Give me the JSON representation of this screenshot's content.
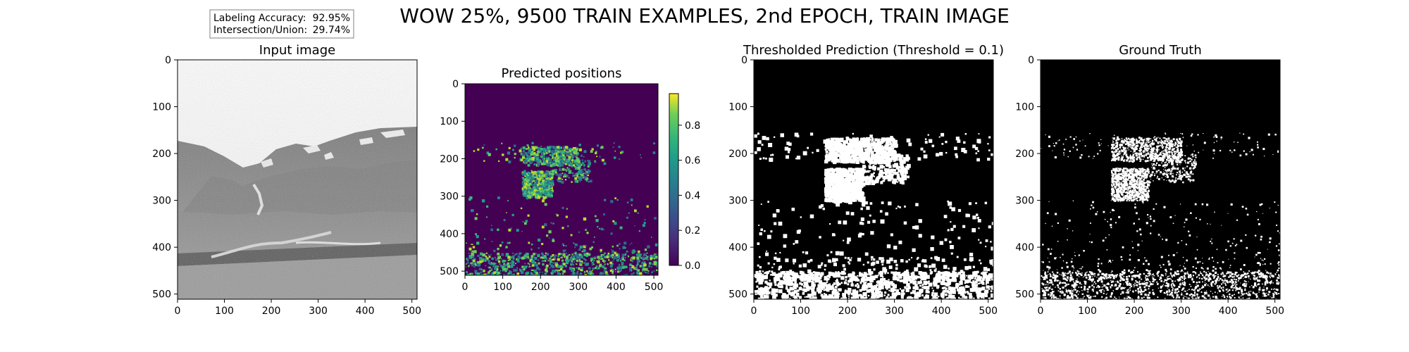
{
  "figure": {
    "title": "WOW 25%, 9500 TRAIN EXAMPLES, 2nd EPOCH, TRAIN IMAGE",
    "stats": [
      {
        "label": "Labeling Accuracy:",
        "value": "92.95%"
      },
      {
        "label": "Intersection/Union:",
        "value": "29.74%"
      }
    ]
  },
  "chart_data": [
    {
      "type": "image",
      "title": "Input image",
      "image_kind": "grayscale photo of mountain valley",
      "xticks": [
        0,
        100,
        200,
        300,
        400,
        500
      ],
      "yticks": [
        0,
        100,
        200,
        300,
        400,
        500
      ],
      "xlim": [
        0,
        511
      ],
      "ylim": [
        511,
        0
      ]
    },
    {
      "type": "heatmap",
      "title": "Predicted positions",
      "colormap": "viridis",
      "xticks": [
        0,
        100,
        200,
        300,
        400,
        500
      ],
      "yticks": [
        0,
        100,
        200,
        300,
        400,
        500
      ],
      "xlim": [
        0,
        511
      ],
      "ylim": [
        511,
        0
      ],
      "colorbar": {
        "ticks": [
          0.0,
          0.2,
          0.4,
          0.6,
          0.8
        ],
        "tick_labels": [
          "0.0",
          "0.2",
          "0.4",
          "0.6",
          "0.8"
        ],
        "range": [
          0.0,
          0.98
        ]
      }
    },
    {
      "type": "image",
      "title": "Thresholded Prediction (Threshold = 0.1)",
      "image_kind": "binary mask",
      "threshold": 0.1,
      "xticks": [
        0,
        100,
        200,
        300,
        400,
        500
      ],
      "yticks": [
        0,
        100,
        200,
        300,
        400,
        500
      ],
      "xlim": [
        0,
        511
      ],
      "ylim": [
        511,
        0
      ]
    },
    {
      "type": "image",
      "title": "Ground Truth",
      "image_kind": "binary mask",
      "xticks": [
        0,
        100,
        200,
        300,
        400,
        500
      ],
      "yticks": [
        0,
        100,
        200,
        300,
        400,
        500
      ],
      "xlim": [
        0,
        511
      ],
      "ylim": [
        511,
        0
      ]
    }
  ]
}
